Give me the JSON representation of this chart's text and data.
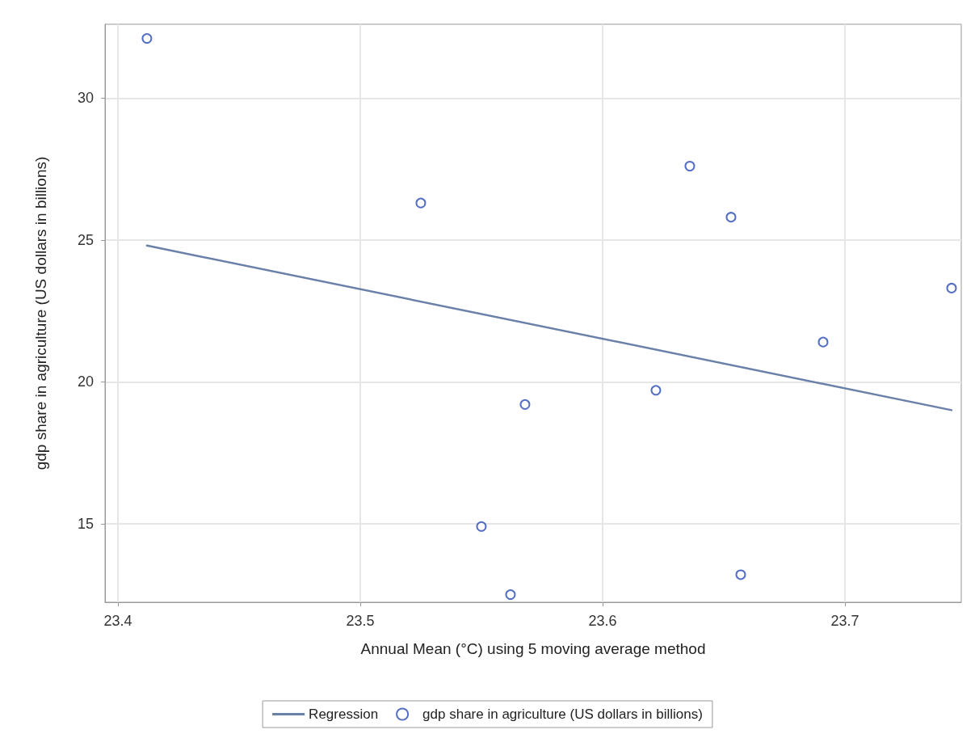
{
  "chart_data": {
    "type": "scatter",
    "xlabel": "Annual Mean (°C) using 5 moving average method",
    "ylabel": "gdp share in agriculture (US dollars in billions)",
    "xlim": [
      23.3947,
      23.748
    ],
    "xticks": [
      23.4,
      23.5,
      23.6,
      23.7
    ],
    "ylim": [
      12.23,
      32.6
    ],
    "yticks": [
      15,
      20,
      25,
      30
    ],
    "grid": true,
    "legend": "bottom",
    "series": [
      {
        "name": "Regression",
        "type": "line",
        "color": "#6a80a8",
        "line_style": "solid",
        "marker": "none",
        "x": [
          23.412,
          23.744
        ],
        "values": [
          24.8,
          19.0
        ]
      },
      {
        "name": "gdp share in agriculture (US dollars in billions)",
        "type": "scatter",
        "color": "#2a4bb5",
        "marker": "circle",
        "x": [
          23.412,
          23.525,
          23.55,
          23.562,
          23.568,
          23.622,
          23.636,
          23.653,
          23.657,
          23.691,
          23.744
        ],
        "values": [
          32.1,
          26.3,
          14.9,
          12.5,
          19.2,
          19.7,
          27.6,
          25.8,
          13.2,
          21.4,
          23.3
        ]
      }
    ]
  }
}
